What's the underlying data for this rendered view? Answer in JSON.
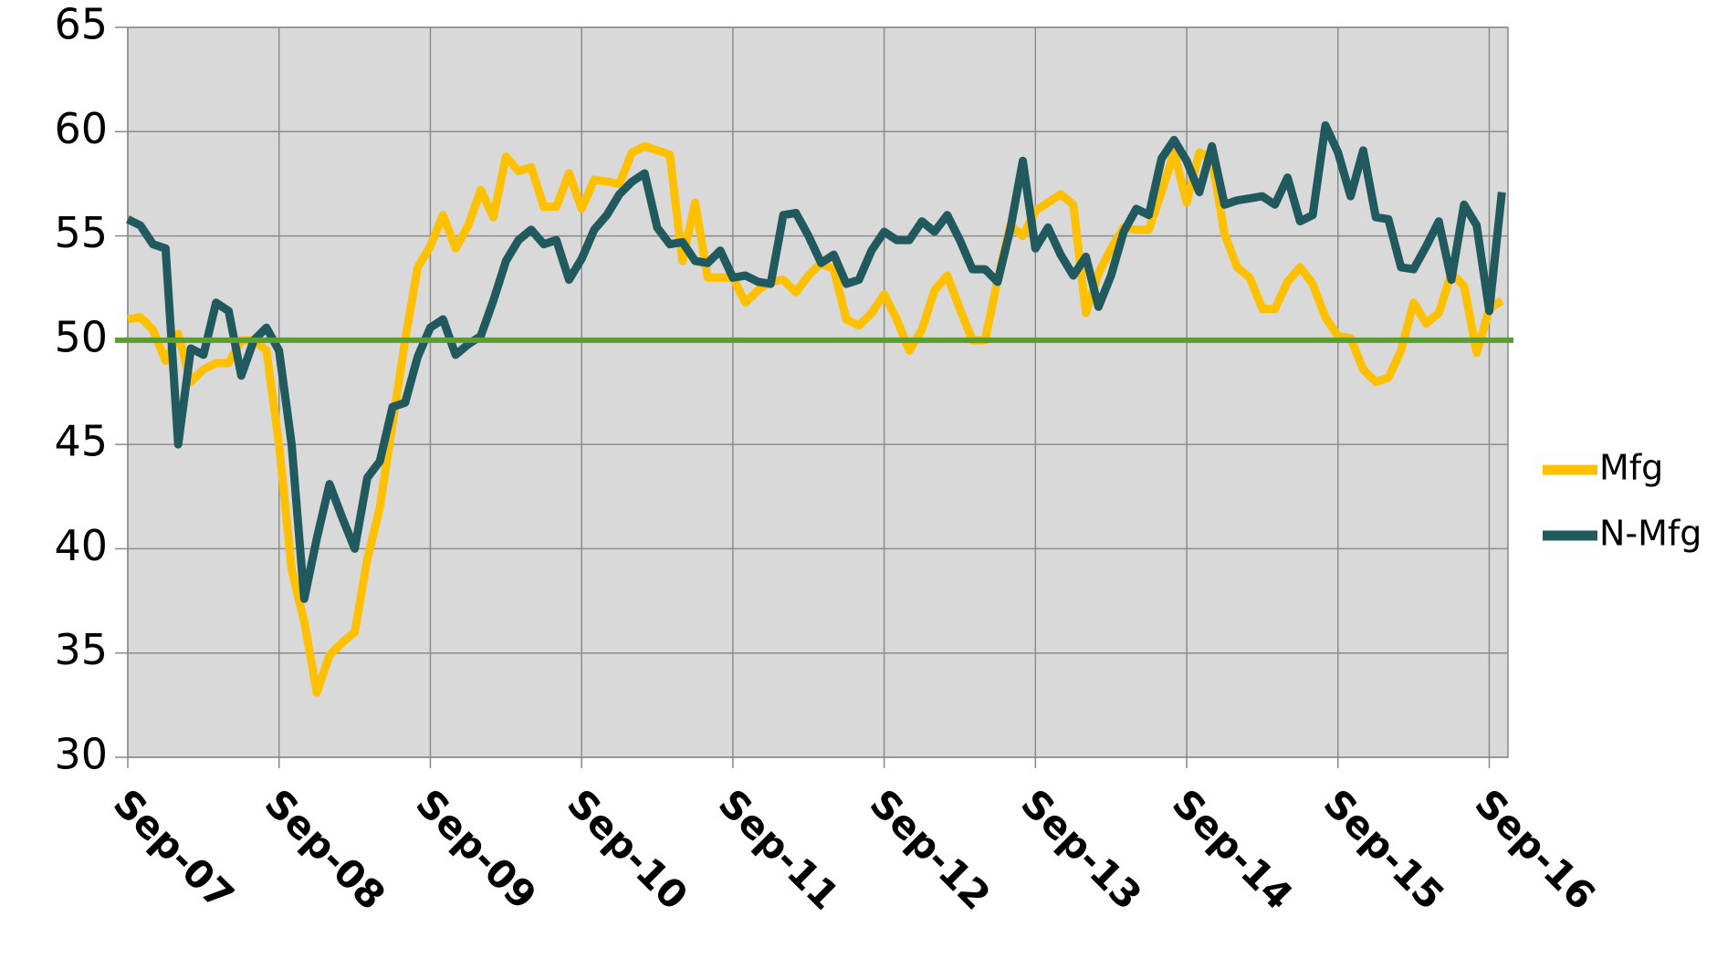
{
  "chart_data": {
    "type": "line",
    "categories": [
      "Sep-07",
      null,
      null,
      null,
      null,
      null,
      null,
      null,
      null,
      null,
      null,
      null,
      "Sep-08",
      null,
      null,
      null,
      null,
      null,
      null,
      null,
      null,
      null,
      null,
      null,
      "Sep-09",
      null,
      null,
      null,
      null,
      null,
      null,
      null,
      null,
      null,
      null,
      null,
      "Sep-10",
      null,
      null,
      null,
      null,
      null,
      null,
      null,
      null,
      null,
      null,
      null,
      "Sep-11",
      null,
      null,
      null,
      null,
      null,
      null,
      null,
      null,
      null,
      null,
      null,
      "Sep-12",
      null,
      null,
      null,
      null,
      null,
      null,
      null,
      null,
      null,
      null,
      null,
      "Sep-13",
      null,
      null,
      null,
      null,
      null,
      null,
      null,
      null,
      null,
      null,
      null,
      "Sep-14",
      null,
      null,
      null,
      null,
      null,
      null,
      null,
      null,
      null,
      null,
      null,
      "Sep-15",
      null,
      null,
      null,
      null,
      null,
      null,
      null,
      null,
      null,
      null,
      null,
      "Sep-16",
      null
    ],
    "series": [
      {
        "name": "Mfg",
        "color": "#ffc000",
        "values": [
          51.0,
          51.1,
          50.5,
          49.0,
          50.3,
          48.0,
          48.6,
          48.9,
          48.9,
          50.0,
          50.0,
          49.5,
          45.0,
          39.0,
          36.5,
          33.1,
          34.9,
          35.5,
          36.0,
          39.5,
          42.0,
          46.0,
          50.0,
          53.5,
          54.5,
          56.0,
          54.4,
          55.5,
          57.2,
          55.9,
          58.8,
          58.1,
          58.3,
          56.4,
          56.4,
          58.0,
          56.3,
          57.7,
          57.6,
          57.5,
          59.0,
          59.3,
          59.1,
          58.9,
          53.8,
          56.6,
          53.0,
          53.0,
          53.0,
          51.8,
          52.4,
          52.8,
          52.9,
          52.3,
          53.1,
          53.7,
          53.4,
          51.0,
          50.7,
          51.3,
          52.2,
          51.0,
          49.5,
          50.5,
          52.4,
          53.1,
          51.5,
          50.0,
          50.0,
          52.9,
          55.5,
          55.0,
          56.2,
          56.6,
          57.0,
          56.5,
          51.3,
          53.2,
          54.4,
          55.4,
          55.3,
          55.3,
          57.1,
          59.0,
          56.6,
          59.0,
          58.7,
          55.1,
          53.5,
          53.0,
          51.5,
          51.5,
          52.8,
          53.5,
          52.7,
          51.1,
          50.2,
          50.1,
          48.6,
          48.0,
          48.2,
          49.5,
          51.8,
          50.8,
          51.3,
          53.2,
          52.6,
          49.4,
          51.5,
          51.9
        ]
      },
      {
        "name": "N-Mfg",
        "color": "#215a5e",
        "values": [
          55.8,
          55.5,
          54.6,
          54.4,
          45.0,
          49.6,
          49.3,
          51.8,
          51.4,
          48.3,
          50.0,
          50.6,
          49.5,
          45.0,
          37.6,
          40.5,
          43.1,
          41.5,
          40.0,
          43.4,
          44.2,
          46.8,
          47.0,
          49.2,
          50.6,
          51.0,
          49.3,
          49.8,
          50.2,
          51.9,
          53.8,
          54.8,
          55.3,
          54.6,
          54.8,
          52.9,
          53.9,
          55.3,
          56.0,
          57.0,
          57.6,
          58.0,
          55.4,
          54.6,
          54.7,
          53.8,
          53.7,
          54.3,
          53.0,
          53.1,
          52.8,
          52.7,
          56.0,
          56.1,
          55.0,
          53.7,
          54.1,
          52.7,
          52.9,
          54.3,
          55.2,
          54.8,
          54.8,
          55.7,
          55.2,
          56.0,
          54.8,
          53.4,
          53.4,
          52.8,
          55.3,
          58.6,
          54.4,
          55.4,
          54.1,
          53.1,
          54.0,
          51.6,
          53.1,
          55.2,
          56.3,
          56.0,
          58.7,
          59.6,
          58.6,
          57.1,
          59.3,
          56.5,
          56.7,
          56.8,
          56.9,
          56.5,
          57.8,
          55.7,
          56.0,
          60.3,
          59.0,
          56.9,
          59.1,
          55.9,
          55.8,
          53.5,
          53.4,
          54.5,
          55.7,
          52.9,
          56.5,
          55.5,
          51.4,
          57.1
        ]
      }
    ],
    "reference_line": {
      "value": 50,
      "color": "#5a9e32"
    },
    "ylim": [
      30,
      65
    ],
    "yticks": [
      30,
      35,
      40,
      45,
      50,
      55,
      60,
      65
    ],
    "grid": true,
    "legend": "right"
  }
}
